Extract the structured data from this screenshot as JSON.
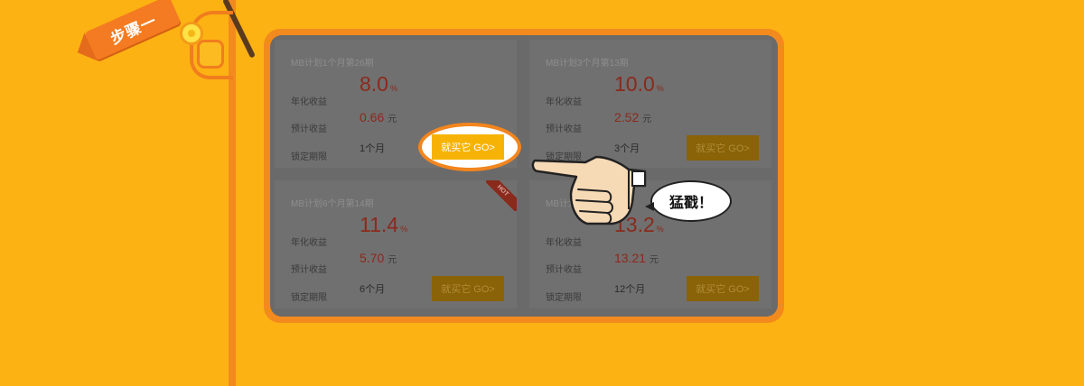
{
  "step": {
    "label": "步骤一"
  },
  "labels": {
    "annual_yield": "年化收益",
    "expected_yield": "预计收益",
    "lock_period": "锁定期限",
    "yuan": "元",
    "percent": "%",
    "buy_button": "就买它 GO>"
  },
  "cards": [
    {
      "title": "MB计划1个月第26期",
      "rate": "8.0",
      "expected": "0.66",
      "term": "1个月",
      "hot": false
    },
    {
      "title": "MB计划3个月第13期",
      "rate": "10.0",
      "expected": "2.52",
      "term": "3个月",
      "hot": false
    },
    {
      "title": "MB计划6个月第14期",
      "rate": "11.4",
      "expected": "5.70",
      "term": "6个月",
      "hot": true,
      "hot_label": "HOT"
    },
    {
      "title": "MB计划12个月第15期",
      "rate": "13.2",
      "expected": "13.21",
      "term": "12个月",
      "hot": false
    }
  ],
  "bubble": {
    "text": "猛戳！"
  },
  "colors": {
    "background": "#FDB213",
    "accent_orange": "#F28A1E",
    "panel_gray": "#6A6A6A",
    "rate_red": "#8a2a1c",
    "button_gold": "#F7B305"
  },
  "icons": {
    "flag": "flag-icon",
    "hand": "pointing-hand-icon",
    "mascot": "mascot-icon",
    "coin": "coin-icon"
  }
}
